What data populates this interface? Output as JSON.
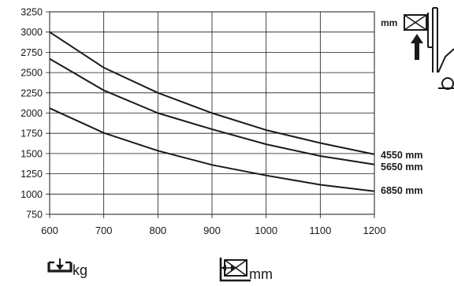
{
  "chart_data": {
    "type": "line",
    "x": [
      600,
      700,
      800,
      900,
      1000,
      1100,
      1200
    ],
    "xlim": [
      600,
      1200
    ],
    "ylim": [
      750,
      3250
    ],
    "x_ticks": [
      600,
      700,
      800,
      900,
      1000,
      1100,
      1200
    ],
    "y_ticks": [
      750,
      1000,
      1250,
      1500,
      1750,
      2000,
      2250,
      2500,
      2750,
      3000,
      3250
    ],
    "grid": true,
    "series": [
      {
        "name": "4550 mm",
        "values": [
          3000,
          2560,
          2250,
          2000,
          1790,
          1630,
          1490
        ]
      },
      {
        "name": "5650 mm",
        "values": [
          2670,
          2280,
          2000,
          1800,
          1615,
          1470,
          1365
        ]
      },
      {
        "name": "6850 mm",
        "values": [
          2060,
          1755,
          1535,
          1360,
          1230,
          1115,
          1035
        ]
      }
    ],
    "y_unit": "kg",
    "x_unit": "mm",
    "lift_unit": "mm"
  },
  "icons": {
    "y_axis": "load-weight-icon",
    "x_axis": "load-center-icon",
    "lift": "forklift-lift-icon"
  }
}
